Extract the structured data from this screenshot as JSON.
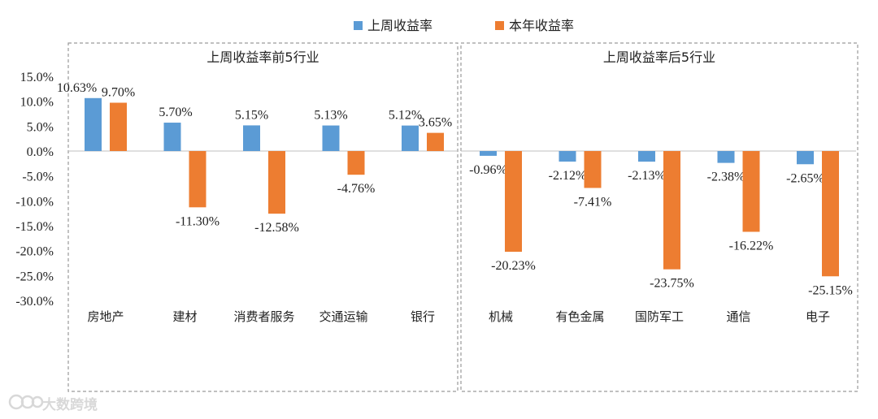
{
  "chart_data": {
    "type": "bar",
    "ylim": [
      -30,
      15
    ],
    "yticks": [
      15,
      10,
      5,
      0,
      -5,
      -10,
      -15,
      -20,
      -25,
      -30
    ],
    "tick_suffix": "%",
    "legend": {
      "position": "top-center",
      "entries": [
        {
          "name": "上周收益率",
          "color": "#5B9BD5"
        },
        {
          "name": "本年收益率",
          "color": "#ED7D31"
        }
      ]
    },
    "panels": [
      {
        "title": "上周收益率前5行业",
        "categories": [
          "房地产",
          "建材",
          "消费者服务",
          "交通运输",
          "银行"
        ],
        "series": [
          {
            "name": "上周收益率",
            "values": [
              10.63,
              5.7,
              5.15,
              5.13,
              5.12
            ],
            "labels": [
              "10.63%",
              "5.70%",
              "5.15%",
              "5.13%",
              "5.12%"
            ]
          },
          {
            "name": "本年收益率",
            "values": [
              9.7,
              -11.3,
              -12.58,
              -4.76,
              3.65
            ],
            "labels": [
              "9.70%",
              "-11.30%",
              "-12.58%",
              "-4.76%",
              "3.65%"
            ]
          }
        ]
      },
      {
        "title": "上周收益率后5行业",
        "categories": [
          "机械",
          "有色金属",
          "国防军工",
          "通信",
          "电子"
        ],
        "series": [
          {
            "name": "上周收益率",
            "values": [
              -0.96,
              -2.12,
              -2.13,
              -2.38,
              -2.65
            ],
            "labels": [
              "-0.96%",
              "-2.12%",
              "-2.13%",
              "-2.38%",
              "-2.65%"
            ]
          },
          {
            "name": "本年收益率",
            "values": [
              -20.23,
              -7.41,
              -23.75,
              -16.22,
              -25.15
            ],
            "labels": [
              "-20.23%",
              "-7.41%",
              "-23.75%",
              "-16.22%",
              "-25.15%"
            ]
          }
        ]
      }
    ]
  },
  "watermark": "大数跨境"
}
